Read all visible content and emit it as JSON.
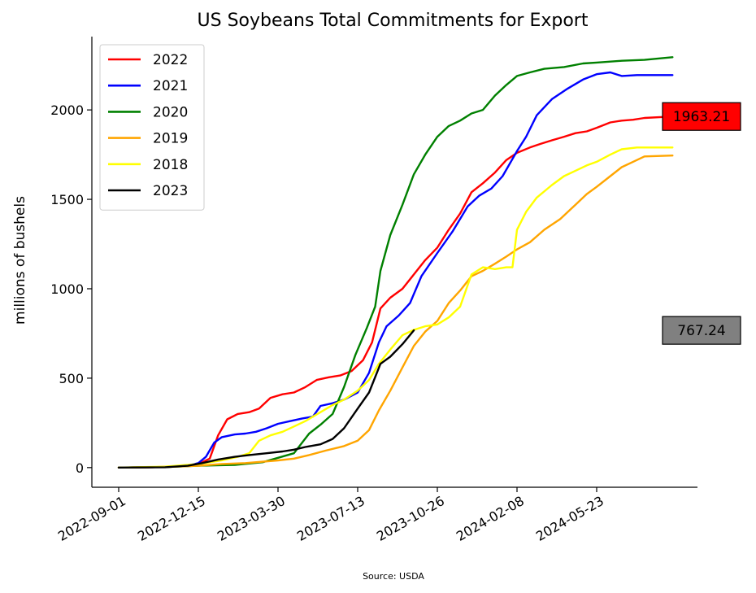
{
  "chart_data": {
    "type": "line",
    "title": "US Soybeans Total Commitments for Export",
    "ylabel": "millions of bushels",
    "xlabel": "",
    "source": "Source: USDA",
    "x_start": "2022-09-01",
    "x_end": "2024-08-31",
    "ylim": [
      -110,
      2410
    ],
    "y_ticks": [
      0,
      500,
      1000,
      1500,
      2000
    ],
    "y_tick_labels": [
      "0",
      "500",
      "1000",
      "1500",
      "2000"
    ],
    "x_ticks": [
      "2022-09-01",
      "2022-12-15",
      "2023-03-30",
      "2023-07-13",
      "2023-10-26",
      "2024-02-08",
      "2024-05-23"
    ],
    "legend_position": "top-left",
    "grid": false,
    "series": [
      {
        "name": "2022",
        "color": "#ff0000",
        "points": [
          [
            "2022-09-01",
            0
          ],
          [
            "2022-10-15",
            2
          ],
          [
            "2022-11-30",
            10
          ],
          [
            "2022-12-15",
            20
          ],
          [
            "2022-12-30",
            50
          ],
          [
            "2023-01-10",
            180
          ],
          [
            "2023-01-22",
            270
          ],
          [
            "2023-02-05",
            300
          ],
          [
            "2023-02-20",
            310
          ],
          [
            "2023-03-05",
            330
          ],
          [
            "2023-03-20",
            390
          ],
          [
            "2023-04-05",
            410
          ],
          [
            "2023-04-20",
            420
          ],
          [
            "2023-05-05",
            450
          ],
          [
            "2023-05-20",
            490
          ],
          [
            "2023-06-05",
            505
          ],
          [
            "2023-06-20",
            515
          ],
          [
            "2023-07-05",
            540
          ],
          [
            "2023-07-20",
            600
          ],
          [
            "2023-08-01",
            700
          ],
          [
            "2023-08-12",
            890
          ],
          [
            "2023-08-25",
            950
          ],
          [
            "2023-09-10",
            1000
          ],
          [
            "2023-09-25",
            1080
          ],
          [
            "2023-10-10",
            1160
          ],
          [
            "2023-10-26",
            1230
          ],
          [
            "2023-11-10",
            1330
          ],
          [
            "2023-11-25",
            1420
          ],
          [
            "2023-12-10",
            1540
          ],
          [
            "2023-12-25",
            1590
          ],
          [
            "2024-01-10",
            1650
          ],
          [
            "2024-01-25",
            1720
          ],
          [
            "2024-02-08",
            1760
          ],
          [
            "2024-02-25",
            1790
          ],
          [
            "2024-03-10",
            1810
          ],
          [
            "2024-03-25",
            1830
          ],
          [
            "2024-04-10",
            1850
          ],
          [
            "2024-04-25",
            1870
          ],
          [
            "2024-05-10",
            1880
          ],
          [
            "2024-05-23",
            1900
          ],
          [
            "2024-06-10",
            1930
          ],
          [
            "2024-06-25",
            1940
          ],
          [
            "2024-07-10",
            1945
          ],
          [
            "2024-07-25",
            1955
          ],
          [
            "2024-08-31",
            1963.21
          ]
        ]
      },
      {
        "name": "2021",
        "color": "#0000ff",
        "points": [
          [
            "2022-09-01",
            0
          ],
          [
            "2022-11-01",
            3
          ],
          [
            "2022-12-01",
            10
          ],
          [
            "2022-12-15",
            25
          ],
          [
            "2022-12-25",
            60
          ],
          [
            "2023-01-05",
            140
          ],
          [
            "2023-01-15",
            170
          ],
          [
            "2023-02-01",
            185
          ],
          [
            "2023-02-15",
            190
          ],
          [
            "2023-03-01",
            200
          ],
          [
            "2023-03-15",
            220
          ],
          [
            "2023-03-30",
            245
          ],
          [
            "2023-04-15",
            260
          ],
          [
            "2023-05-01",
            275
          ],
          [
            "2023-05-15",
            285
          ],
          [
            "2023-05-25",
            345
          ],
          [
            "2023-06-10",
            360
          ],
          [
            "2023-06-25",
            380
          ],
          [
            "2023-07-13",
            420
          ],
          [
            "2023-07-28",
            530
          ],
          [
            "2023-08-10",
            700
          ],
          [
            "2023-08-20",
            790
          ],
          [
            "2023-09-05",
            850
          ],
          [
            "2023-09-20",
            920
          ],
          [
            "2023-10-05",
            1070
          ],
          [
            "2023-10-26",
            1200
          ],
          [
            "2023-11-15",
            1320
          ],
          [
            "2023-12-05",
            1460
          ],
          [
            "2023-12-20",
            1520
          ],
          [
            "2024-01-05",
            1560
          ],
          [
            "2024-01-20",
            1630
          ],
          [
            "2024-02-08",
            1770
          ],
          [
            "2024-02-20",
            1850
          ],
          [
            "2024-03-05",
            1970
          ],
          [
            "2024-03-25",
            2060
          ],
          [
            "2024-04-15",
            2120
          ],
          [
            "2024-05-05",
            2170
          ],
          [
            "2024-05-23",
            2200
          ],
          [
            "2024-06-10",
            2210
          ],
          [
            "2024-06-25",
            2190
          ],
          [
            "2024-07-15",
            2195
          ],
          [
            "2024-08-31",
            2195
          ]
        ]
      },
      {
        "name": "2020",
        "color": "#008000",
        "points": [
          [
            "2022-09-01",
            0
          ],
          [
            "2022-11-01",
            3
          ],
          [
            "2022-12-15",
            10
          ],
          [
            "2023-02-01",
            15
          ],
          [
            "2023-03-10",
            30
          ],
          [
            "2023-04-20",
            80
          ],
          [
            "2023-05-10",
            190
          ],
          [
            "2023-05-25",
            240
          ],
          [
            "2023-06-10",
            300
          ],
          [
            "2023-06-25",
            450
          ],
          [
            "2023-07-10",
            630
          ],
          [
            "2023-07-25",
            780
          ],
          [
            "2023-08-05",
            900
          ],
          [
            "2023-08-12",
            1100
          ],
          [
            "2023-08-25",
            1300
          ],
          [
            "2023-09-10",
            1470
          ],
          [
            "2023-09-25",
            1640
          ],
          [
            "2023-10-10",
            1750
          ],
          [
            "2023-10-26",
            1850
          ],
          [
            "2023-11-10",
            1910
          ],
          [
            "2023-11-25",
            1940
          ],
          [
            "2023-12-10",
            1980
          ],
          [
            "2023-12-25",
            2000
          ],
          [
            "2024-01-10",
            2080
          ],
          [
            "2024-01-25",
            2140
          ],
          [
            "2024-02-08",
            2190
          ],
          [
            "2024-02-25",
            2210
          ],
          [
            "2024-03-15",
            2230
          ],
          [
            "2024-04-10",
            2240
          ],
          [
            "2024-05-05",
            2260
          ],
          [
            "2024-05-23",
            2265
          ],
          [
            "2024-06-25",
            2275
          ],
          [
            "2024-07-25",
            2280
          ],
          [
            "2024-08-31",
            2295
          ]
        ]
      },
      {
        "name": "2019",
        "color": "#ffa500",
        "points": [
          [
            "2022-09-01",
            0
          ],
          [
            "2022-11-01",
            3
          ],
          [
            "2022-12-15",
            10
          ],
          [
            "2023-01-15",
            20
          ],
          [
            "2023-02-15",
            25
          ],
          [
            "2023-03-30",
            40
          ],
          [
            "2023-04-20",
            50
          ],
          [
            "2023-05-10",
            70
          ],
          [
            "2023-06-01",
            95
          ],
          [
            "2023-06-25",
            120
          ],
          [
            "2023-07-13",
            150
          ],
          [
            "2023-07-28",
            210
          ],
          [
            "2023-08-10",
            320
          ],
          [
            "2023-08-25",
            430
          ],
          [
            "2023-09-10",
            560
          ],
          [
            "2023-09-25",
            680
          ],
          [
            "2023-10-10",
            760
          ],
          [
            "2023-10-26",
            820
          ],
          [
            "2023-11-10",
            920
          ],
          [
            "2023-11-25",
            990
          ],
          [
            "2023-12-10",
            1070
          ],
          [
            "2023-12-25",
            1100
          ],
          [
            "2024-01-10",
            1140
          ],
          [
            "2024-01-25",
            1180
          ],
          [
            "2024-02-08",
            1220
          ],
          [
            "2024-02-25",
            1260
          ],
          [
            "2024-03-15",
            1330
          ],
          [
            "2024-04-05",
            1390
          ],
          [
            "2024-04-25",
            1470
          ],
          [
            "2024-05-10",
            1530
          ],
          [
            "2024-05-23",
            1570
          ],
          [
            "2024-06-10",
            1630
          ],
          [
            "2024-06-25",
            1680
          ],
          [
            "2024-07-10",
            1710
          ],
          [
            "2024-07-25",
            1740
          ],
          [
            "2024-08-31",
            1745
          ]
        ]
      },
      {
        "name": "2018",
        "color": "#ffff00",
        "points": [
          [
            "2022-09-01",
            0
          ],
          [
            "2022-11-01",
            5
          ],
          [
            "2022-12-15",
            20
          ],
          [
            "2023-01-15",
            40
          ],
          [
            "2023-02-05",
            60
          ],
          [
            "2023-02-20",
            80
          ],
          [
            "2023-03-05",
            150
          ],
          [
            "2023-03-20",
            180
          ],
          [
            "2023-04-05",
            200
          ],
          [
            "2023-04-20",
            230
          ],
          [
            "2023-05-05",
            260
          ],
          [
            "2023-05-25",
            310
          ],
          [
            "2023-06-10",
            350
          ],
          [
            "2023-06-25",
            380
          ],
          [
            "2023-07-13",
            430
          ],
          [
            "2023-07-28",
            490
          ],
          [
            "2023-08-10",
            580
          ],
          [
            "2023-08-25",
            660
          ],
          [
            "2023-09-10",
            740
          ],
          [
            "2023-09-25",
            770
          ],
          [
            "2023-10-10",
            790
          ],
          [
            "2023-10-26",
            800
          ],
          [
            "2023-11-10",
            840
          ],
          [
            "2023-11-25",
            900
          ],
          [
            "2023-12-10",
            1080
          ],
          [
            "2023-12-25",
            1120
          ],
          [
            "2024-01-10",
            1110
          ],
          [
            "2024-01-25",
            1120
          ],
          [
            "2024-02-02",
            1120
          ],
          [
            "2024-02-08",
            1330
          ],
          [
            "2024-02-20",
            1430
          ],
          [
            "2024-03-05",
            1510
          ],
          [
            "2024-03-25",
            1580
          ],
          [
            "2024-04-10",
            1630
          ],
          [
            "2024-04-25",
            1660
          ],
          [
            "2024-05-10",
            1690
          ],
          [
            "2024-05-23",
            1710
          ],
          [
            "2024-06-10",
            1750
          ],
          [
            "2024-06-25",
            1780
          ],
          [
            "2024-07-15",
            1790
          ],
          [
            "2024-08-31",
            1790
          ]
        ]
      },
      {
        "name": "2023",
        "color": "#000000",
        "points": [
          [
            "2022-09-01",
            0
          ],
          [
            "2022-11-01",
            2
          ],
          [
            "2022-12-01",
            10
          ],
          [
            "2022-12-20",
            25
          ],
          [
            "2023-01-10",
            45
          ],
          [
            "2023-02-01",
            60
          ],
          [
            "2023-02-20",
            70
          ],
          [
            "2023-03-15",
            80
          ],
          [
            "2023-04-05",
            90
          ],
          [
            "2023-04-20",
            100
          ],
          [
            "2023-05-05",
            115
          ],
          [
            "2023-05-25",
            130
          ],
          [
            "2023-06-10",
            160
          ],
          [
            "2023-06-25",
            220
          ],
          [
            "2023-07-13",
            330
          ],
          [
            "2023-07-28",
            420
          ],
          [
            "2023-08-12",
            580
          ],
          [
            "2023-08-25",
            620
          ],
          [
            "2023-09-10",
            690
          ],
          [
            "2023-09-25",
            767.24
          ]
        ]
      }
    ],
    "value_boxes": [
      {
        "label": "1963.21",
        "value": 1963.21,
        "fill": "#ff0000"
      },
      {
        "label": "767.24",
        "value": 767.24,
        "fill": "#808080"
      }
    ]
  }
}
